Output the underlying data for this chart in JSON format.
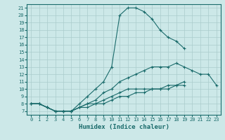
{
  "xlabel": "Humidex (Indice chaleur)",
  "bg_color": "#cce8e8",
  "grid_color": "#aacccc",
  "line_color": "#1a6b6b",
  "xlim": [
    -0.5,
    23.5
  ],
  "ylim": [
    6.5,
    21.5
  ],
  "xticks": [
    0,
    1,
    2,
    3,
    4,
    5,
    6,
    7,
    8,
    9,
    10,
    11,
    12,
    13,
    14,
    15,
    16,
    17,
    18,
    19,
    20,
    21,
    22,
    23
  ],
  "yticks": [
    7,
    8,
    9,
    10,
    11,
    12,
    13,
    14,
    15,
    16,
    17,
    18,
    19,
    20,
    21
  ],
  "line1_x": [
    0,
    1,
    2,
    3,
    4,
    5,
    6,
    7,
    8,
    9,
    10,
    11,
    12,
    13,
    14,
    15,
    16,
    17,
    18,
    19
  ],
  "line1_y": [
    8,
    8,
    7.5,
    7,
    7,
    7,
    8,
    9,
    10,
    11,
    13,
    20,
    21,
    21,
    20.5,
    19.5,
    18,
    17,
    16.5,
    15.5
  ],
  "line2_x": [
    0,
    1,
    2,
    3,
    4,
    5,
    6,
    7,
    8,
    9,
    10,
    11,
    12,
    13,
    14,
    15,
    16,
    17,
    18,
    19,
    20,
    21,
    22,
    23
  ],
  "line2_y": [
    8,
    8,
    7.5,
    7,
    7,
    7,
    7.5,
    8,
    8.5,
    9.5,
    10,
    11,
    11.5,
    12,
    12.5,
    13,
    13,
    13,
    13.5,
    13,
    12.5,
    12,
    12,
    10.5
  ],
  "line3_x": [
    0,
    1,
    2,
    3,
    4,
    5,
    6,
    7,
    8,
    9,
    10,
    11,
    12,
    13,
    14,
    15,
    16,
    17,
    18,
    19
  ],
  "line3_y": [
    8,
    8,
    7.5,
    7,
    7,
    7,
    7.5,
    8,
    8,
    8.5,
    9,
    9.5,
    10,
    10,
    10,
    10,
    10,
    10.5,
    10.5,
    11
  ],
  "line4_x": [
    0,
    1,
    2,
    3,
    4,
    5,
    6,
    7,
    8,
    9,
    10,
    11,
    12,
    13,
    14,
    15,
    16,
    17,
    18,
    19
  ],
  "line4_y": [
    8,
    8,
    7.5,
    7,
    7,
    7,
    7.5,
    7.5,
    8,
    8,
    8.5,
    9,
    9,
    9.5,
    9.5,
    10,
    10,
    10,
    10.5,
    10.5
  ]
}
